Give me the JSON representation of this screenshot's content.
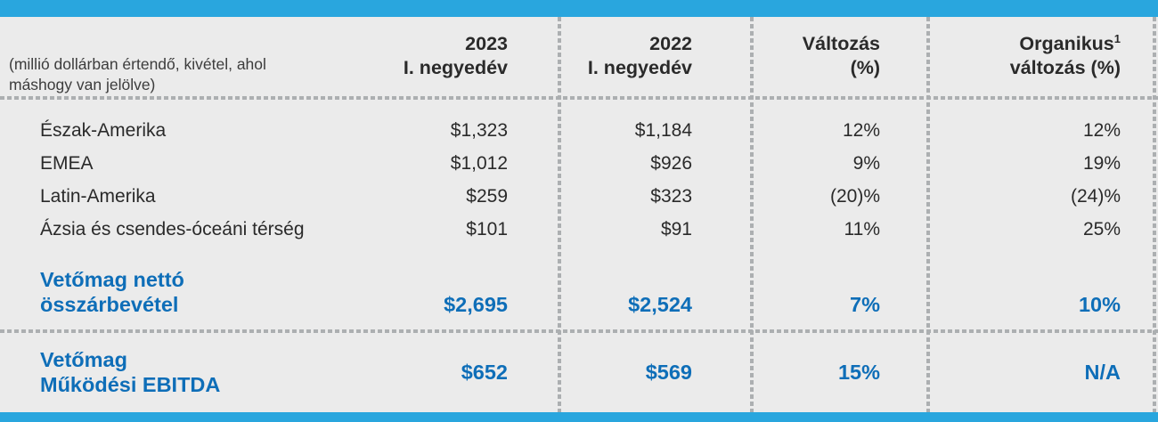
{
  "header": {
    "note_line1": "(millió dollárban értendő, kivétel, ahol",
    "note_line2": "máshogy van jelölve)",
    "col_2023_line1": "2023",
    "col_2023_line2": "I. negyedév",
    "col_2022_line1": "2022",
    "col_2022_line2": "I. negyedév",
    "col_change_line1": "Változás",
    "col_change_line2": "(%)",
    "col_organic_line1": "Organikus",
    "col_organic_sup": "1",
    "col_organic_line2": "változás (%)"
  },
  "rows": [
    {
      "label": "Észak-Amerika",
      "q1_2023": "$1,323",
      "q1_2022": "$1,184",
      "change": "12%",
      "organic": "12%"
    },
    {
      "label": "EMEA",
      "q1_2023": "$1,012",
      "q1_2022": "$926",
      "change": "9%",
      "organic": "19%"
    },
    {
      "label": "Latin-Amerika",
      "q1_2023": "$259",
      "q1_2022": "$323",
      "change": "(20)%",
      "organic": "(24)%"
    },
    {
      "label": "Ázsia és csendes-óceáni térség",
      "q1_2023": "$101",
      "q1_2022": "$91",
      "change": "11%",
      "organic": "25%"
    }
  ],
  "total_row": {
    "label_line1": "Vetőmag nettó",
    "label_line2": "összárbevétel",
    "q1_2023": "$2,695",
    "q1_2022": "$2,524",
    "change": "7%",
    "organic": "10%"
  },
  "ebitda_row": {
    "label_line1": "Vetőmag",
    "label_line2": "Működési EBITDA",
    "q1_2023": "$652",
    "q1_2022": "$569",
    "change": "15%",
    "organic": "N/A"
  },
  "colors": {
    "accent_bar": "#29A6DE",
    "highlight_text": "#0E6EB8",
    "background": "#EBEBEB",
    "divider": "#ACAFB1",
    "body_text": "#2A2A2A"
  }
}
